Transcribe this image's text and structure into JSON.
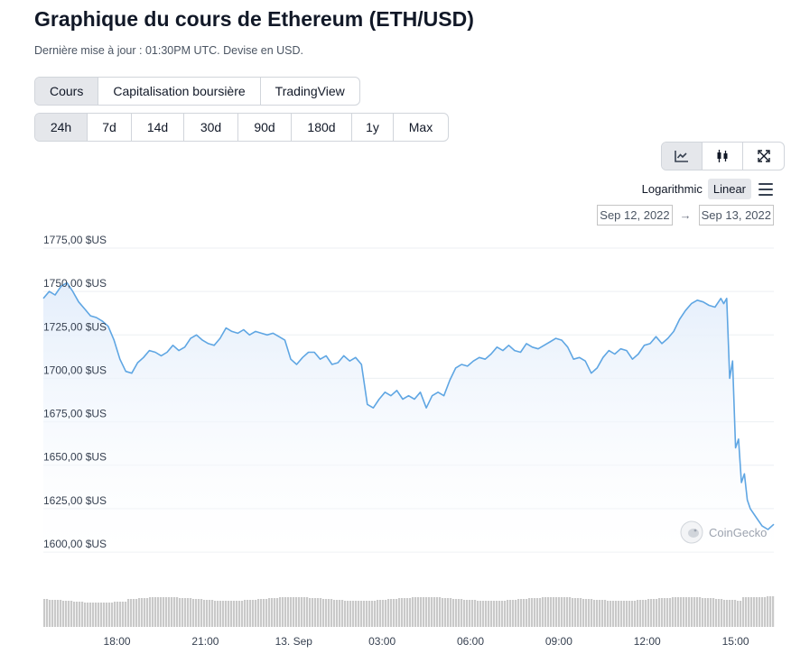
{
  "header": {
    "title": "Graphique du cours de Ethereum (ETH/USD)",
    "subtitle": "Dernière mise à jour : 01:30PM UTC. Devise en USD."
  },
  "tabs": [
    {
      "label": "Cours",
      "active": true
    },
    {
      "label": "Capitalisation boursière",
      "active": false
    },
    {
      "label": "TradingView",
      "active": false
    }
  ],
  "ranges": [
    {
      "label": "24h",
      "active": true
    },
    {
      "label": "7d",
      "active": false
    },
    {
      "label": "14d",
      "active": false
    },
    {
      "label": "30d",
      "active": false
    },
    {
      "label": "90d",
      "active": false
    },
    {
      "label": "180d",
      "active": false
    },
    {
      "label": "1y",
      "active": false
    },
    {
      "label": "Max",
      "active": false
    }
  ],
  "chart_type_buttons": [
    {
      "icon": "line-chart-icon",
      "active": true
    },
    {
      "icon": "candlestick-icon",
      "active": false
    },
    {
      "icon": "fullscreen-icon",
      "active": false
    }
  ],
  "scale": {
    "logarithmic": "Logarithmic",
    "linear": "Linear",
    "active": "linear"
  },
  "date_range": {
    "from": "Sep 12, 2022",
    "arrow": "→",
    "to": "Sep 13, 2022"
  },
  "watermark": "CoinGecko",
  "colors": {
    "line": "#5fa6e3",
    "fill_top": "#e4eefb",
    "grid": "#eceff3",
    "volume": "#c9c9c9"
  },
  "chart_data": {
    "type": "area",
    "title": "",
    "xlabel": "",
    "ylabel": "",
    "ylim": [
      1600,
      1775
    ],
    "y_ticks": [
      1775,
      1750,
      1725,
      1700,
      1675,
      1650,
      1625,
      1600
    ],
    "y_tick_labels": [
      "1775,00 $US",
      "1750,00 $US",
      "1725,00 $US",
      "1700,00 $US",
      "1675,00 $US",
      "1650,00 $US",
      "1625,00 $US",
      "1600,00 $US"
    ],
    "xlim": [
      15.5,
      40.3
    ],
    "x_ticks": [
      18,
      21,
      24,
      27,
      30,
      33,
      36,
      39
    ],
    "x_tick_labels": [
      "18:00",
      "21:00",
      "13. Sep",
      "03:00",
      "06:00",
      "09:00",
      "12:00",
      "15:00"
    ],
    "series": [
      {
        "x": [
          15.5,
          15.7,
          15.9,
          16.1,
          16.3,
          16.5,
          16.7,
          16.9,
          17.1,
          17.3,
          17.5,
          17.7,
          17.9,
          18.1,
          18.3,
          18.5,
          18.7,
          18.9,
          19.1,
          19.3,
          19.5,
          19.7,
          19.9,
          20.1,
          20.3,
          20.5,
          20.7,
          20.9,
          21.1,
          21.3,
          21.5,
          21.7,
          21.9,
          22.1,
          22.3,
          22.5,
          22.7,
          22.9,
          23.1,
          23.3,
          23.5,
          23.7,
          23.9,
          24.1,
          24.3,
          24.5,
          24.7,
          24.9,
          25.1,
          25.3,
          25.5,
          25.7,
          25.9,
          26.1,
          26.3,
          26.5,
          26.7,
          26.9,
          27.1,
          27.3,
          27.5,
          27.7,
          27.9,
          28.1,
          28.3,
          28.5,
          28.7,
          28.9,
          29.1,
          29.3,
          29.5,
          29.7,
          29.9,
          30.1,
          30.3,
          30.5,
          30.7,
          30.9,
          31.1,
          31.3,
          31.5,
          31.7,
          31.9,
          32.1,
          32.3,
          32.5,
          32.7,
          32.9,
          33.1,
          33.3,
          33.5,
          33.7,
          33.9,
          34.1,
          34.3,
          34.5,
          34.7,
          34.9,
          35.1,
          35.3,
          35.5,
          35.7,
          35.9,
          36.1,
          36.3,
          36.5,
          36.7,
          36.9,
          37.1,
          37.3,
          37.5,
          37.7,
          37.9,
          38.1,
          38.3,
          38.5,
          38.6,
          38.7,
          38.8,
          38.9,
          39.0,
          39.1,
          39.2,
          39.3,
          39.4,
          39.5,
          39.7,
          39.9,
          40.1,
          40.3
        ],
        "values": [
          1746,
          1750,
          1748,
          1753,
          1755,
          1750,
          1744,
          1740,
          1736,
          1735,
          1733,
          1730,
          1722,
          1711,
          1704,
          1703,
          1709,
          1712,
          1716,
          1715,
          1713,
          1715,
          1719,
          1716,
          1718,
          1723,
          1725,
          1722,
          1720,
          1719,
          1723,
          1729,
          1727,
          1726,
          1728,
          1725,
          1727,
          1726,
          1725,
          1726,
          1724,
          1722,
          1711,
          1708,
          1712,
          1715,
          1715,
          1711,
          1713,
          1708,
          1709,
          1713,
          1710,
          1712,
          1708,
          1685,
          1683,
          1688,
          1692,
          1690,
          1693,
          1688,
          1690,
          1688,
          1692,
          1683,
          1690,
          1692,
          1690,
          1699,
          1706,
          1708,
          1707,
          1710,
          1712,
          1711,
          1714,
          1718,
          1716,
          1719,
          1716,
          1715,
          1720,
          1718,
          1717,
          1719,
          1721,
          1723,
          1722,
          1718,
          1711,
          1712,
          1710,
          1703,
          1706,
          1712,
          1716,
          1714,
          1717,
          1716,
          1711,
          1714,
          1719,
          1720,
          1724,
          1720,
          1723,
          1727,
          1734,
          1739,
          1743,
          1745,
          1744,
          1742,
          1741,
          1746,
          1743,
          1746,
          1700,
          1710,
          1660,
          1665,
          1640,
          1645,
          1630,
          1625,
          1620,
          1615,
          1613,
          1616
        ]
      }
    ]
  }
}
